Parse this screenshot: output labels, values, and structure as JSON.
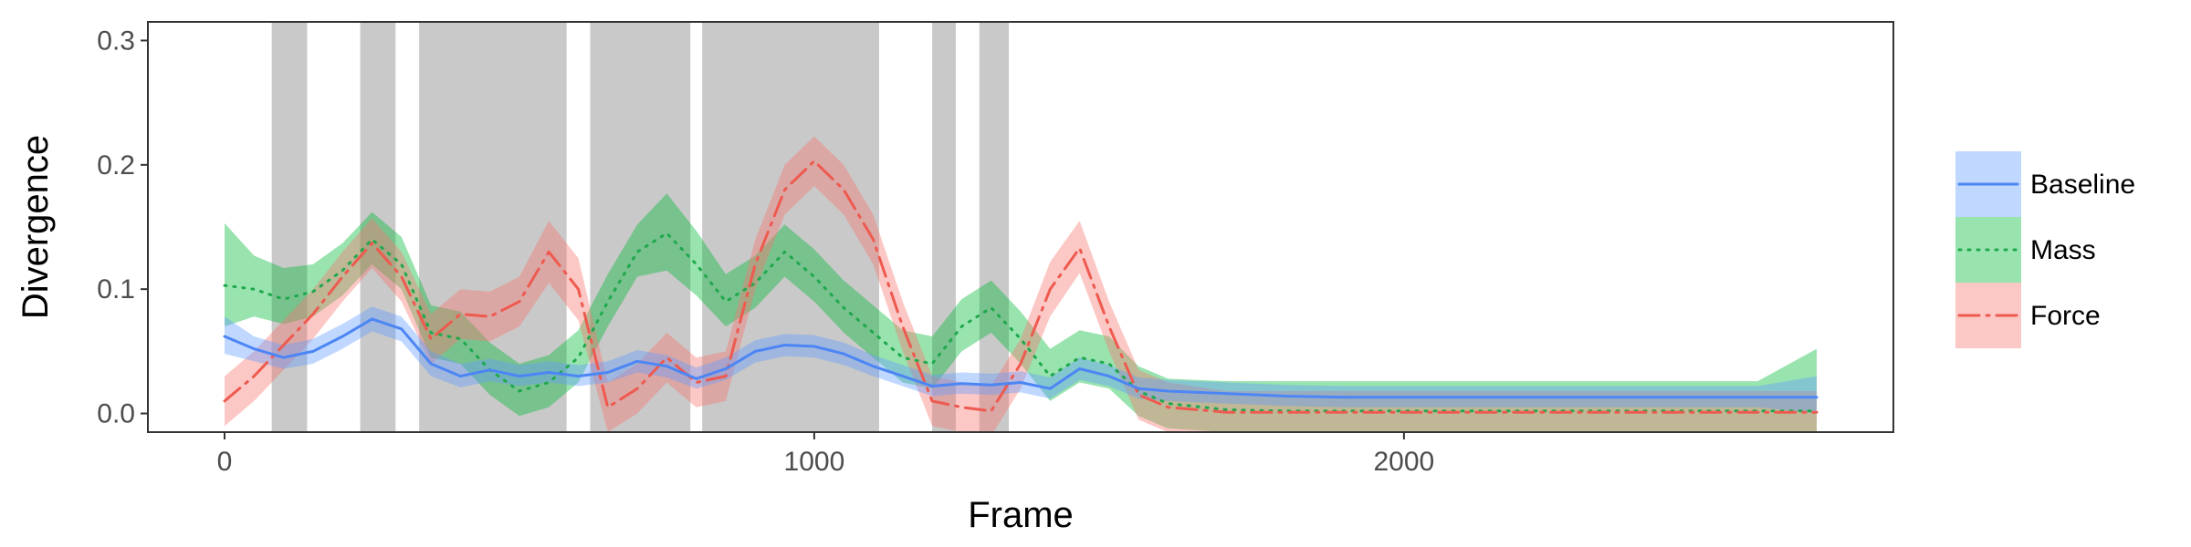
{
  "chart_data": {
    "type": "line",
    "xlabel": "Frame",
    "ylabel": "Divergence",
    "xlim": [
      -130,
      2830
    ],
    "ylim": [
      -0.015,
      0.315
    ],
    "x_ticks": [
      0,
      1000,
      2000
    ],
    "x_tick_labels": [
      "0",
      "1000",
      "2000"
    ],
    "y_ticks": [
      0.0,
      0.1,
      0.2,
      0.3
    ],
    "y_tick_labels": [
      "0.0",
      "0.1",
      "0.2",
      "0.3"
    ],
    "grid": false,
    "legend_position": "right",
    "shaded_intervals": [
      [
        80,
        140
      ],
      [
        230,
        290
      ],
      [
        330,
        580
      ],
      [
        620,
        790
      ],
      [
        810,
        1110
      ],
      [
        1200,
        1240
      ],
      [
        1280,
        1330
      ]
    ],
    "series": [
      {
        "name": "Baseline",
        "color": "#619CFF",
        "line_color": "#4C86F5",
        "line_style": "solid",
        "x": [
          0,
          50,
          100,
          150,
          200,
          250,
          300,
          350,
          400,
          450,
          500,
          550,
          600,
          650,
          700,
          750,
          800,
          850,
          900,
          950,
          1000,
          1050,
          1100,
          1150,
          1200,
          1250,
          1300,
          1350,
          1400,
          1450,
          1500,
          1550,
          1600,
          1700,
          1800,
          1900,
          2000,
          2100,
          2200,
          2300,
          2400,
          2500,
          2600,
          2700
        ],
        "y": [
          0.062,
          0.052,
          0.045,
          0.05,
          0.062,
          0.076,
          0.068,
          0.04,
          0.03,
          0.035,
          0.03,
          0.033,
          0.03,
          0.033,
          0.042,
          0.038,
          0.028,
          0.036,
          0.05,
          0.055,
          0.054,
          0.048,
          0.038,
          0.03,
          0.022,
          0.024,
          0.023,
          0.025,
          0.02,
          0.036,
          0.03,
          0.02,
          0.018,
          0.016,
          0.014,
          0.013,
          0.013,
          0.013,
          0.013,
          0.013,
          0.013,
          0.013,
          0.013,
          0.013
        ],
        "lower": [
          0.048,
          0.042,
          0.036,
          0.04,
          0.052,
          0.066,
          0.058,
          0.03,
          0.021,
          0.026,
          0.022,
          0.025,
          0.022,
          0.025,
          0.033,
          0.029,
          0.02,
          0.027,
          0.041,
          0.046,
          0.045,
          0.039,
          0.03,
          0.022,
          0.014,
          0.016,
          0.015,
          0.017,
          0.012,
          0.027,
          0.022,
          0.012,
          0.01,
          0.008,
          0.006,
          0.005,
          0.005,
          0.005,
          0.005,
          0.005,
          0.005,
          0.005,
          0.005,
          0.0
        ],
        "upper": [
          0.078,
          0.062,
          0.055,
          0.06,
          0.072,
          0.086,
          0.078,
          0.05,
          0.04,
          0.044,
          0.039,
          0.042,
          0.039,
          0.042,
          0.051,
          0.047,
          0.037,
          0.045,
          0.059,
          0.064,
          0.063,
          0.057,
          0.047,
          0.039,
          0.031,
          0.033,
          0.032,
          0.034,
          0.029,
          0.045,
          0.039,
          0.029,
          0.027,
          0.025,
          0.023,
          0.022,
          0.022,
          0.022,
          0.022,
          0.022,
          0.022,
          0.022,
          0.022,
          0.03
        ]
      },
      {
        "name": "Mass",
        "color": "#00BA38",
        "line_color": "#1FA84C",
        "line_style": "dotted",
        "x": [
          0,
          50,
          100,
          150,
          200,
          250,
          300,
          350,
          400,
          450,
          500,
          550,
          600,
          650,
          700,
          750,
          800,
          850,
          900,
          950,
          1000,
          1050,
          1100,
          1150,
          1200,
          1250,
          1300,
          1350,
          1400,
          1450,
          1500,
          1550,
          1600,
          1700,
          1800,
          1900,
          2000,
          2100,
          2200,
          2300,
          2400,
          2500,
          2600,
          2700
        ],
        "y": [
          0.103,
          0.1,
          0.092,
          0.098,
          0.115,
          0.14,
          0.12,
          0.065,
          0.06,
          0.035,
          0.018,
          0.025,
          0.045,
          0.09,
          0.13,
          0.145,
          0.12,
          0.09,
          0.105,
          0.13,
          0.11,
          0.085,
          0.065,
          0.045,
          0.04,
          0.07,
          0.085,
          0.06,
          0.03,
          0.045,
          0.04,
          0.018,
          0.008,
          0.003,
          0.002,
          0.002,
          0.002,
          0.002,
          0.002,
          0.002,
          0.002,
          0.002,
          0.002,
          0.002
        ],
        "lower": [
          0.07,
          0.078,
          0.072,
          0.078,
          0.095,
          0.12,
          0.1,
          0.045,
          0.04,
          0.015,
          -0.002,
          0.005,
          0.025,
          0.07,
          0.11,
          0.115,
          0.095,
          0.07,
          0.085,
          0.11,
          0.09,
          0.065,
          0.045,
          0.025,
          0.02,
          0.05,
          0.065,
          0.04,
          0.01,
          0.025,
          0.02,
          -0.002,
          -0.012,
          -0.015,
          -0.015,
          -0.015,
          -0.015,
          -0.015,
          -0.015,
          -0.015,
          -0.015,
          -0.015,
          -0.015,
          -0.015
        ],
        "upper": [
          0.153,
          0.127,
          0.117,
          0.12,
          0.137,
          0.162,
          0.142,
          0.087,
          0.082,
          0.057,
          0.04,
          0.047,
          0.067,
          0.112,
          0.152,
          0.177,
          0.147,
          0.112,
          0.127,
          0.152,
          0.132,
          0.107,
          0.087,
          0.067,
          0.062,
          0.092,
          0.107,
          0.082,
          0.052,
          0.067,
          0.062,
          0.038,
          0.028,
          0.026,
          0.026,
          0.026,
          0.026,
          0.026,
          0.026,
          0.026,
          0.026,
          0.026,
          0.026,
          0.052
        ]
      },
      {
        "name": "Force",
        "color": "#F8766D",
        "line_color": "#EE5A4F",
        "line_style": "dashdot",
        "x": [
          0,
          50,
          100,
          150,
          200,
          250,
          300,
          350,
          400,
          450,
          500,
          550,
          600,
          650,
          700,
          750,
          800,
          850,
          900,
          950,
          1000,
          1050,
          1100,
          1150,
          1200,
          1250,
          1300,
          1350,
          1400,
          1450,
          1500,
          1550,
          1600,
          1700,
          1800,
          1900,
          2000,
          2100,
          2200,
          2300,
          2400,
          2500,
          2600,
          2700
        ],
        "y": [
          0.01,
          0.03,
          0.055,
          0.08,
          0.11,
          0.137,
          0.11,
          0.06,
          0.08,
          0.078,
          0.09,
          0.13,
          0.1,
          0.005,
          0.02,
          0.045,
          0.025,
          0.03,
          0.12,
          0.18,
          0.203,
          0.18,
          0.14,
          0.07,
          0.01,
          0.005,
          0.002,
          0.04,
          0.1,
          0.133,
          0.07,
          0.015,
          0.005,
          0.001,
          0.001,
          0.001,
          0.001,
          0.001,
          0.001,
          0.001,
          0.001,
          0.001,
          0.001,
          0.001
        ],
        "lower": [
          -0.01,
          0.01,
          0.035,
          0.06,
          0.09,
          0.117,
          0.09,
          0.04,
          0.06,
          0.058,
          0.07,
          0.105,
          0.075,
          -0.015,
          0.0,
          0.025,
          0.005,
          0.01,
          0.1,
          0.16,
          0.183,
          0.16,
          0.12,
          0.05,
          -0.01,
          -0.015,
          -0.018,
          0.02,
          0.078,
          0.113,
          0.05,
          -0.005,
          -0.015,
          -0.015,
          -0.015,
          -0.015,
          -0.015,
          -0.015,
          -0.015,
          -0.015,
          -0.015,
          -0.015,
          -0.015,
          -0.015
        ],
        "upper": [
          0.03,
          0.05,
          0.075,
          0.1,
          0.13,
          0.157,
          0.13,
          0.08,
          0.1,
          0.098,
          0.11,
          0.155,
          0.125,
          0.025,
          0.04,
          0.065,
          0.045,
          0.05,
          0.14,
          0.2,
          0.223,
          0.2,
          0.16,
          0.09,
          0.03,
          0.025,
          0.022,
          0.06,
          0.122,
          0.155,
          0.09,
          0.035,
          0.025,
          0.018,
          0.018,
          0.018,
          0.018,
          0.018,
          0.018,
          0.018,
          0.018,
          0.018,
          0.018,
          0.018
        ]
      }
    ]
  }
}
